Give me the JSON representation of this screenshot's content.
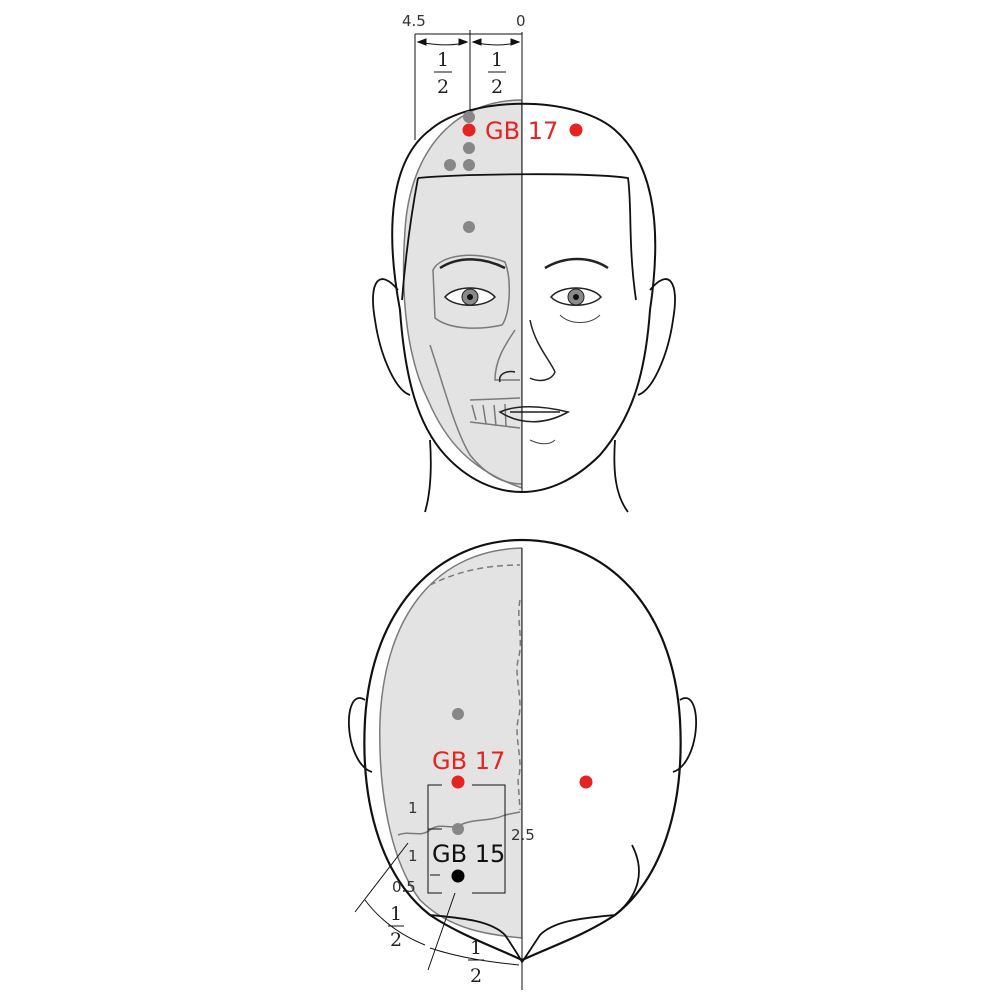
{
  "colors": {
    "acupoint": "#e52421",
    "reference_point": "#878787",
    "target_point": "#000000",
    "skull_shade": "#e3e3e3",
    "outline": "#111111"
  },
  "front_view": {
    "point_label": "GB 17",
    "scale_left": "4.5",
    "scale_right": "0",
    "frac_left": {
      "num": "1",
      "den": "2"
    },
    "frac_right": {
      "num": "1",
      "den": "2"
    }
  },
  "back_view": {
    "upper_label": "GB 17",
    "lower_label": "GB 15",
    "dist_1a": "1",
    "dist_1b": "1",
    "dist_05": "0.5",
    "dist_25": "2.5",
    "frac_lower_left": {
      "num": "1",
      "den": "2"
    },
    "frac_lower_right": {
      "num": "1",
      "den": "2"
    }
  }
}
